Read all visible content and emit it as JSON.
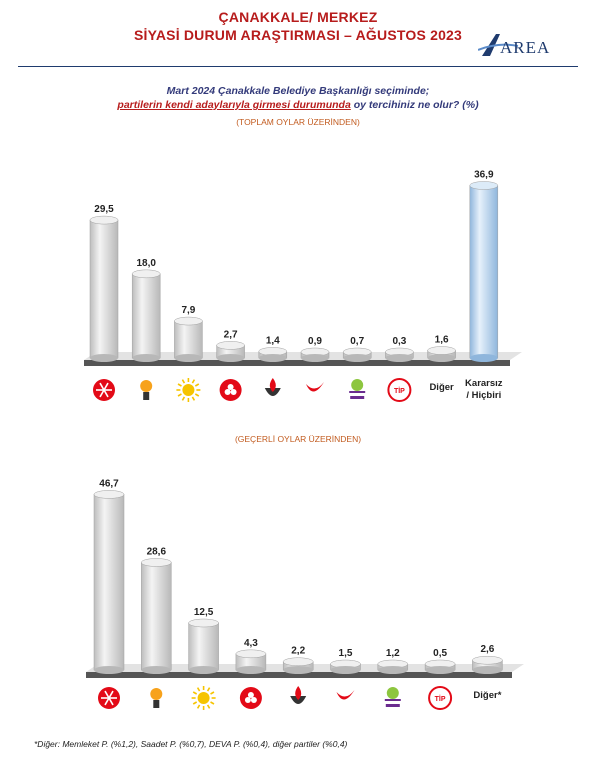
{
  "header": {
    "title_line1": "ÇANAKKALE/ MERKEZ",
    "title_line2": "SİYASİ DURUM ARAŞTIRMASI – AĞUSTOS 2023",
    "logo_text": "AREA"
  },
  "question": {
    "line1": "Mart 2024 Çanakkale Belediye Başkanlığı seçiminde;",
    "line2_underlined": "partilerin kendi adaylarıyla girmesi durumunda",
    "line2_rest": " oy tercihiniz ne olur? (%)"
  },
  "footnote": "*Diğer: Memleket P. (%1,2), Saadet P. (%0,7), DEVA P. (%0,4), diğer partiler (%0,4)",
  "colors": {
    "title": "#b71c1c",
    "question": "#333a7a",
    "subtitle": "#c25b1f",
    "bar_gray": "#d9d9d9",
    "bar_blue": "#a9cbe8"
  },
  "chart_data": [
    {
      "type": "bar",
      "subtitle": "(TOPLAM OYLAR ÜZERİNDEN)",
      "categories": [
        "chp-logo",
        "akp-logo",
        "iyi-logo",
        "mhp-logo",
        "zafer-logo",
        "ydp-logo",
        "yesil-sol-logo",
        "tip-logo",
        "Diğer",
        "Kararsız / Hiçbiri"
      ],
      "category_labels": [
        "",
        "",
        "",
        "",
        "",
        "",
        "",
        "",
        "Diğer",
        "Kararsız / Hiçbiri"
      ],
      "values": [
        29.5,
        18.0,
        7.9,
        2.7,
        1.4,
        0.9,
        0.7,
        0.3,
        1.6,
        36.9
      ],
      "value_labels": [
        "29,5",
        "18,0",
        "7,9",
        "2,7",
        "1,4",
        "0,9",
        "0,7",
        "0,3",
        "1,6",
        "36,9"
      ],
      "highlight_index": 9,
      "ylim": [
        0,
        40
      ]
    },
    {
      "type": "bar",
      "subtitle": "(GEÇERLİ OYLAR ÜZERİNDEN)",
      "categories": [
        "chp-logo",
        "akp-logo",
        "iyi-logo",
        "mhp-logo",
        "zafer-logo",
        "ydp-logo",
        "yesil-sol-logo",
        "tip-logo",
        "Diğer*"
      ],
      "category_labels": [
        "",
        "",
        "",
        "",
        "",
        "",
        "",
        "",
        "Diğer*"
      ],
      "values": [
        46.7,
        28.6,
        12.5,
        4.3,
        2.2,
        1.5,
        1.2,
        0.5,
        2.6
      ],
      "value_labels": [
        "46,7",
        "28,6",
        "12,5",
        "4,3",
        "2,2",
        "1,5",
        "1,2",
        "0,5",
        "2,6"
      ],
      "highlight_index": -1,
      "ylim": [
        0,
        50
      ]
    }
  ]
}
